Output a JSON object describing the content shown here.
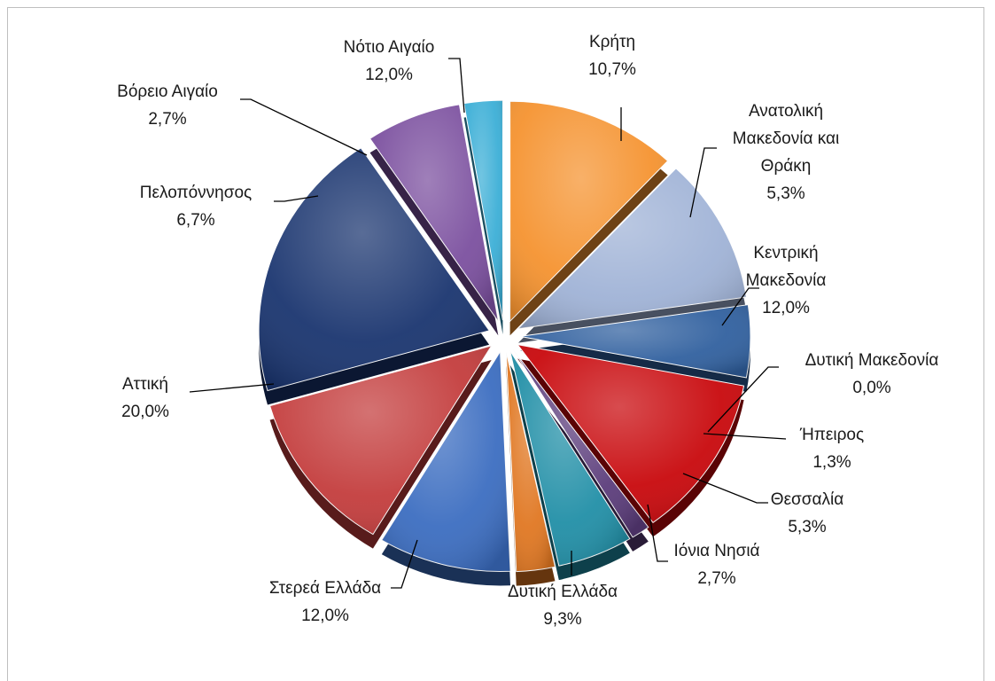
{
  "chart_data": {
    "type": "pie",
    "title": "",
    "slices": [
      {
        "label": "Νότιο Αιγαίο",
        "value": 12.0,
        "value_label": "12,0%",
        "color": "#f5922e"
      },
      {
        "label": "Κρήτη",
        "value": 10.7,
        "value_label": "10,7%",
        "color": "#9fb2d6"
      },
      {
        "label": "Ανατολική Μακεδονία και Θράκη",
        "value": 5.3,
        "value_label": "5,3%",
        "color": "#2f5f9e"
      },
      {
        "label": "Κεντρική Μακεδονία",
        "value": 12.0,
        "value_label": "12,0%",
        "color": "#c8060a"
      },
      {
        "label": "Δυτική Μακεδονία",
        "value": 0.0,
        "value_label": "0,0%",
        "color": "#7a9a3a"
      },
      {
        "label": "Ήπειρος",
        "value": 1.3,
        "value_label": "1,3%",
        "color": "#5a3b7a"
      },
      {
        "label": "Θεσσαλία",
        "value": 5.3,
        "value_label": "5,3%",
        "color": "#1f8ea6"
      },
      {
        "label": "Ιόνια Νησιά",
        "value": 2.7,
        "value_label": "2,7%",
        "color": "#e07620"
      },
      {
        "label": "Δυτική Ελλάδα",
        "value": 9.3,
        "value_label": "9,3%",
        "color": "#3a6cc0"
      },
      {
        "label": "Στερεά Ελλάδα",
        "value": 12.0,
        "value_label": "12,0%",
        "color": "#c33b3b"
      },
      {
        "label": "Αττική",
        "value": 20.0,
        "value_label": "20,0%",
        "color": "#18336e"
      },
      {
        "label": "Πελοπόννησος",
        "value": 6.7,
        "value_label": "6,7%",
        "color": "#7a4e9e"
      },
      {
        "label": "Βόρειο Αιγαίο",
        "value": 2.7,
        "value_label": "2,7%",
        "color": "#3aaed6"
      }
    ]
  }
}
